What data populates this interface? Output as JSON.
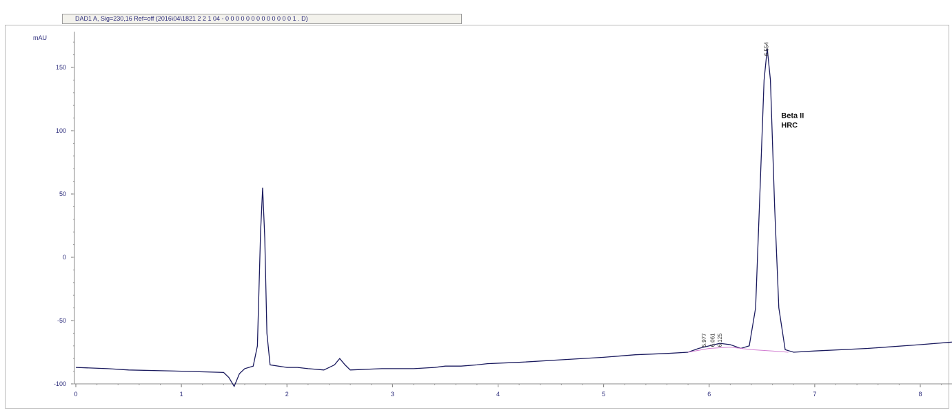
{
  "window": {
    "header_text": "DAD1 A, Sig=230,16 Ref=off (2016\\04\\1821 2 2 1 04 - 0 0 0 0 0 0 0 0 0 0 0 0 0 1 . D)",
    "colors": {
      "signal": "#1a1a5e",
      "baseline": "#d07ad0",
      "text": "#2a2a7a"
    }
  },
  "chart_data": {
    "type": "line",
    "title": "",
    "xlabel": "",
    "ylabel": "mAU",
    "xlim": [
      0,
      8.3
    ],
    "ylim": [
      -100,
      175
    ],
    "x_ticks": [
      "0",
      "1",
      "2",
      "3",
      "4",
      "5",
      "6",
      "7",
      "8"
    ],
    "y_ticks": [
      "-100",
      "-50",
      "0",
      "50",
      "100",
      "150"
    ],
    "series": [
      {
        "points": [
          [
            0.0,
            -87
          ],
          [
            0.3,
            -88
          ],
          [
            0.5,
            -89
          ],
          [
            1.0,
            -90
          ],
          [
            1.4,
            -91
          ],
          [
            1.45,
            -95
          ],
          [
            1.5,
            -102
          ],
          [
            1.55,
            -92
          ],
          [
            1.6,
            -88
          ],
          [
            1.68,
            -86
          ],
          [
            1.72,
            -70
          ],
          [
            1.75,
            20
          ],
          [
            1.77,
            55
          ],
          [
            1.79,
            15
          ],
          [
            1.81,
            -60
          ],
          [
            1.84,
            -85
          ],
          [
            2.0,
            -87
          ],
          [
            2.1,
            -87
          ],
          [
            2.2,
            -88
          ],
          [
            2.35,
            -89
          ],
          [
            2.45,
            -85
          ],
          [
            2.5,
            -80
          ],
          [
            2.55,
            -85
          ],
          [
            2.6,
            -89
          ],
          [
            2.9,
            -88
          ],
          [
            3.2,
            -88
          ],
          [
            3.4,
            -87
          ],
          [
            3.5,
            -86
          ],
          [
            3.65,
            -86
          ],
          [
            3.8,
            -85
          ],
          [
            3.9,
            -84
          ],
          [
            4.2,
            -83
          ],
          [
            4.6,
            -81
          ],
          [
            5.0,
            -79
          ],
          [
            5.3,
            -77
          ],
          [
            5.6,
            -76
          ],
          [
            5.8,
            -75
          ],
          [
            5.9,
            -72
          ],
          [
            6.0,
            -70
          ],
          [
            6.1,
            -68
          ],
          [
            6.2,
            -69
          ],
          [
            6.3,
            -72
          ],
          [
            6.38,
            -70
          ],
          [
            6.44,
            -40
          ],
          [
            6.48,
            50
          ],
          [
            6.52,
            140
          ],
          [
            6.55,
            165
          ],
          [
            6.58,
            140
          ],
          [
            6.62,
            40
          ],
          [
            6.66,
            -40
          ],
          [
            6.72,
            -73
          ],
          [
            6.8,
            -75
          ],
          [
            7.0,
            -74
          ],
          [
            7.5,
            -72
          ],
          [
            8.0,
            -69
          ],
          [
            8.3,
            -67
          ]
        ]
      },
      {
        "points": [
          [
            5.8,
            -75
          ],
          [
            6.0,
            -72
          ],
          [
            6.2,
            -71
          ],
          [
            6.4,
            -73
          ],
          [
            6.6,
            -74
          ],
          [
            6.75,
            -75
          ]
        ]
      }
    ],
    "peak_labels": [
      {
        "x": 6.56,
        "y": 170,
        "text": "6.554"
      },
      {
        "x": 5.97,
        "y": -60,
        "text": "5.977"
      },
      {
        "x": 6.05,
        "y": -60,
        "text": "6.061"
      },
      {
        "x": 6.12,
        "y": -60,
        "text": "6.125"
      }
    ],
    "annotations": [
      {
        "x": 6.65,
        "y": 110,
        "lines": [
          "Beta II",
          "HRC"
        ]
      }
    ]
  }
}
